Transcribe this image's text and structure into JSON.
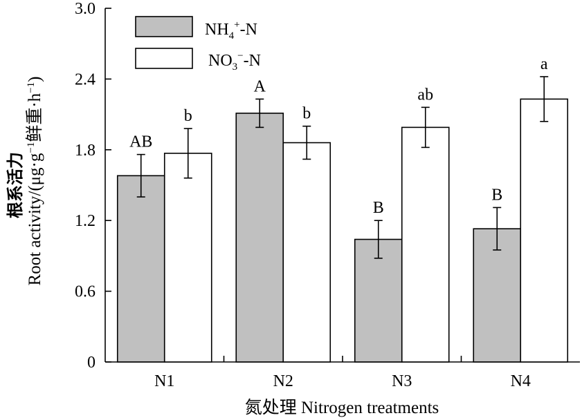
{
  "chart_data": {
    "type": "bar",
    "categories": [
      "N1",
      "N2",
      "N3",
      "N4"
    ],
    "series": [
      {
        "name": "NH4+-N",
        "legend": {
          "base": "NH",
          "sub": "4",
          "sup": "+",
          "suffix": "-N"
        },
        "color": "#c0c0c0",
        "values": [
          1.58,
          2.11,
          1.04,
          1.13
        ],
        "errors": [
          0.18,
          0.12,
          0.16,
          0.18
        ],
        "letters": [
          "AB",
          "A",
          "B",
          "B"
        ]
      },
      {
        "name": "NO3−-N",
        "legend": {
          "base": "NO",
          "sub": "3",
          "sup": "−",
          "suffix": "-N"
        },
        "color": "#ffffff",
        "values": [
          1.77,
          1.86,
          1.99,
          2.23
        ],
        "errors": [
          0.21,
          0.14,
          0.17,
          0.19
        ],
        "letters": [
          "b",
          "b",
          "ab",
          "a"
        ]
      }
    ],
    "ylim": [
      0,
      3.0
    ],
    "yticks": [
      "0",
      "0.6",
      "1.2",
      "1.8",
      "2.4",
      "3.0"
    ],
    "ylabel_cn": "根系活力",
    "ylabel": {
      "prefix": "Root activity/(μg·g",
      "sup1": "−1",
      "mid": "鲜重·h",
      "sup2": "−1",
      "suffix": ")"
    },
    "xlabel": "氮处理 Nitrogen treatments",
    "grid": false,
    "legend_position": "top-left"
  }
}
